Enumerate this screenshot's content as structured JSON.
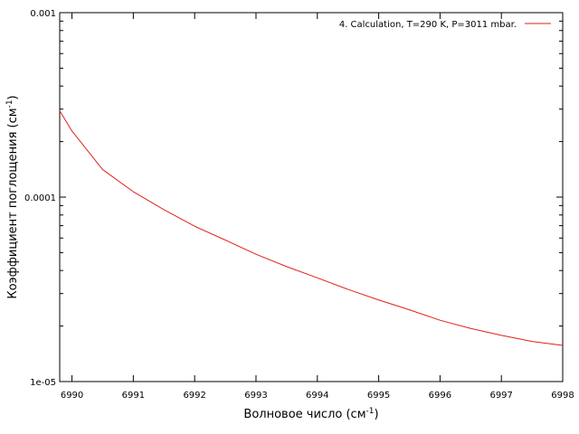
{
  "colors": {
    "background": "#ffffff",
    "axis": "#000000",
    "series": "#e0201b"
  },
  "chart_data": {
    "type": "line",
    "title": "",
    "xlabel": {
      "text": "Волновое число (см",
      "sup": "-1",
      "close": ")"
    },
    "ylabel": {
      "text": "Коэффициент поглощения (см",
      "sup": "-1",
      "close": ")"
    },
    "xlim": [
      6989.8,
      6998
    ],
    "ylim": [
      1e-05,
      0.001
    ],
    "yscale": "log",
    "grid": false,
    "legend_position": "top-right",
    "x_ticks": [
      {
        "value": 6990,
        "label": "6990"
      },
      {
        "value": 6991,
        "label": "6991"
      },
      {
        "value": 6992,
        "label": "6992"
      },
      {
        "value": 6993,
        "label": "6993"
      },
      {
        "value": 6994,
        "label": "6994"
      },
      {
        "value": 6995,
        "label": "6995"
      },
      {
        "value": 6996,
        "label": "6996"
      },
      {
        "value": 6997,
        "label": "6997"
      },
      {
        "value": 6998,
        "label": "6998"
      }
    ],
    "y_ticks": [
      {
        "value": 1e-05,
        "label": "1e-05"
      },
      {
        "value": 0.0001,
        "label": "0.0001"
      },
      {
        "value": 0.001,
        "label": "0.001"
      }
    ],
    "series": [
      {
        "name": "4. Calculation, T=290 K, P=3011 mbar.",
        "color": "#e0201b",
        "points": [
          {
            "x": 6989.8,
            "y": 0.000294
          },
          {
            "x": 6990.0,
            "y": 0.000228
          },
          {
            "x": 6990.5,
            "y": 0.000141
          },
          {
            "x": 6991.0,
            "y": 0.000107
          },
          {
            "x": 6991.5,
            "y": 8.54e-05
          },
          {
            "x": 6992.0,
            "y": 6.95e-05
          },
          {
            "x": 6992.5,
            "y": 5.85e-05
          },
          {
            "x": 6993.0,
            "y": 4.9e-05
          },
          {
            "x": 6993.5,
            "y": 4.2e-05
          },
          {
            "x": 6994.0,
            "y": 3.65e-05
          },
          {
            "x": 6994.5,
            "y": 3.16e-05
          },
          {
            "x": 6995.0,
            "y": 2.77e-05
          },
          {
            "x": 6995.5,
            "y": 2.45e-05
          },
          {
            "x": 6996.0,
            "y": 2.15e-05
          },
          {
            "x": 6996.5,
            "y": 1.94e-05
          },
          {
            "x": 6997.0,
            "y": 1.78e-05
          },
          {
            "x": 6997.5,
            "y": 1.65e-05
          },
          {
            "x": 6998.0,
            "y": 1.57e-05
          }
        ]
      }
    ]
  }
}
